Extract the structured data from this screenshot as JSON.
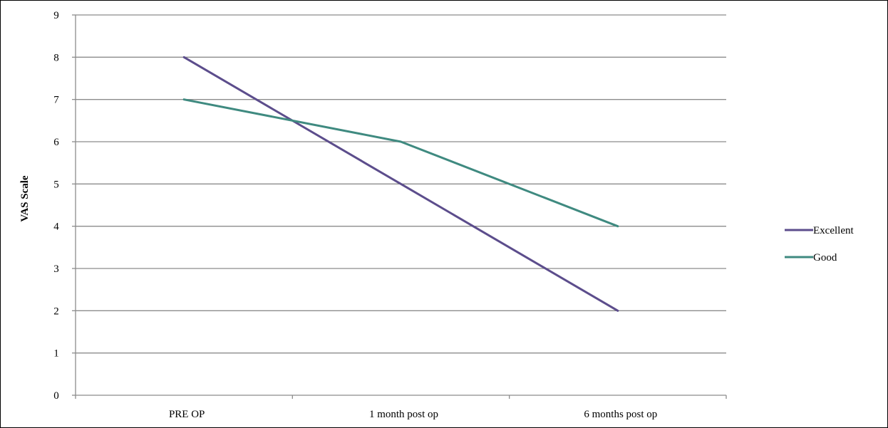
{
  "chart_data": {
    "type": "line",
    "title": "",
    "xlabel": "",
    "ylabel": "VAS Scale",
    "categories": [
      "PRE OP",
      "1 month post op",
      "6 months post op"
    ],
    "ylim": [
      0,
      9
    ],
    "yticks": [
      "0",
      "1",
      "2",
      "3",
      "4",
      "5",
      "6",
      "7",
      "8",
      "9"
    ],
    "grid": true,
    "legend_position": "right",
    "series": [
      {
        "name": "Excellent",
        "values": [
          8,
          5,
          2
        ],
        "color": "#5c4d8c"
      },
      {
        "name": "Good",
        "values": [
          7,
          6,
          4
        ],
        "color": "#3f8a80"
      }
    ]
  }
}
